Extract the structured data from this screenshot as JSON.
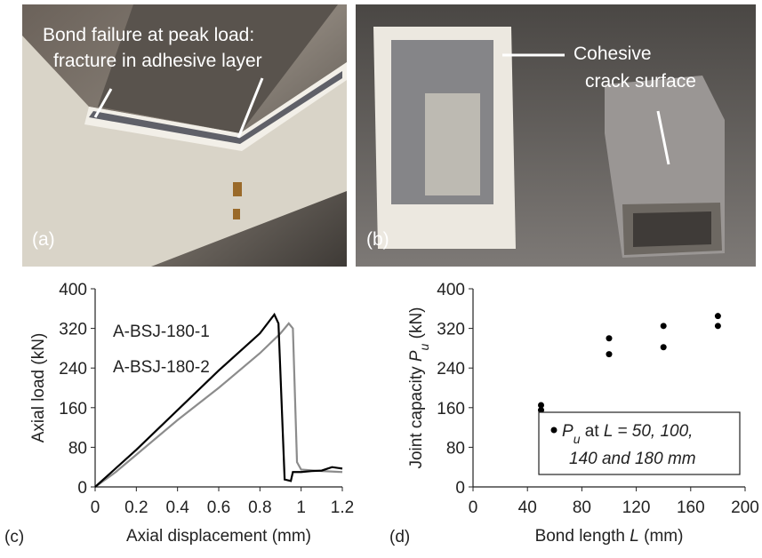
{
  "photos": [
    {
      "label": "(a)",
      "annotation": [
        "Bond failure at peak load:",
        "fracture in adhesive layer"
      ]
    },
    {
      "label": "(b)",
      "annotation": [
        "Cohesive",
        "crack surface"
      ]
    }
  ],
  "chart_data": [
    {
      "type": "line",
      "panel": "(c)",
      "x_label": "Axial displacement (mm)",
      "y_label": "Axial load (kN)",
      "xlim": [
        0,
        1.2
      ],
      "xticks": [
        0,
        0.2,
        0.4,
        0.6,
        0.8,
        1,
        1.2
      ],
      "ylim": [
        0,
        400
      ],
      "yticks": [
        0,
        80,
        160,
        240,
        320,
        400
      ],
      "series": [
        {
          "name": "A-BSJ-180-1",
          "color": "#8c8c8c",
          "x": [
            0,
            0.1,
            0.2,
            0.4,
            0.6,
            0.8,
            0.9,
            0.94,
            0.96,
            0.98,
            1.0,
            1.1,
            1.2
          ],
          "values": [
            0,
            30,
            65,
            135,
            200,
            270,
            310,
            330,
            320,
            50,
            35,
            32,
            30
          ]
        },
        {
          "name": "A-BSJ-180-2",
          "color": "#000000",
          "x": [
            0,
            0.2,
            0.4,
            0.6,
            0.8,
            0.87,
            0.89,
            0.92,
            0.95,
            0.96,
            1.0,
            1.05,
            1.1,
            1.15,
            1.2
          ],
          "values": [
            0,
            75,
            155,
            235,
            310,
            348,
            330,
            15,
            12,
            30,
            30,
            32,
            33,
            40,
            37
          ]
        }
      ]
    },
    {
      "type": "scatter",
      "panel": "(d)",
      "x_label": [
        {
          "text": "Bond length "
        },
        {
          "text": "L",
          "style": "italic"
        },
        {
          "text": " (mm)"
        }
      ],
      "y_label": [
        {
          "text": "Joint capacity "
        },
        {
          "text": "P",
          "style": "italic"
        },
        {
          "text": "u",
          "style": "sub"
        },
        {
          "text": " (kN)"
        }
      ],
      "xlim": [
        0,
        200
      ],
      "xticks": [
        0,
        40,
        80,
        120,
        160,
        200
      ],
      "ylim": [
        0,
        400
      ],
      "yticks": [
        0,
        80,
        160,
        240,
        320,
        400
      ],
      "series": [
        {
          "name": [
            [
              {
                "text": "P",
                "style": "italic"
              },
              {
                "text": "u",
                "style": "sub"
              },
              {
                "text": " at "
              },
              {
                "text": "L",
                "style": "italic"
              },
              {
                "text": " = 50, 100,",
                "style": "italic"
              }
            ],
            [
              {
                "text": "140 and 180 mm",
                "style": "italic"
              }
            ]
          ],
          "color": "#000000",
          "x": [
            50,
            50,
            100,
            100,
            140,
            140,
            180,
            180
          ],
          "values": [
            165,
            155,
            300,
            268,
            325,
            282,
            345,
            325
          ]
        }
      ]
    }
  ]
}
